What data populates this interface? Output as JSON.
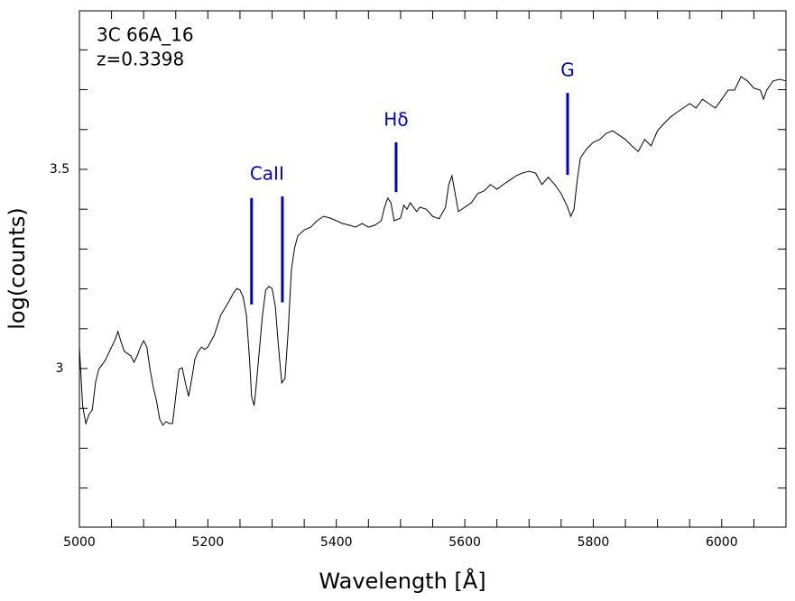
{
  "chart_data": {
    "type": "line",
    "annotations": [
      "3C 66A_16",
      "z=0.3398"
    ],
    "xlabel": "Wavelength [Å]",
    "ylabel": "log(counts)",
    "xlim": [
      5000,
      6100
    ],
    "ylim": [
      2.602,
      3.898
    ],
    "xticks": [
      5000,
      5200,
      5400,
      5600,
      5800,
      6000
    ],
    "xticks_minor": [
      5050,
      5100,
      5150,
      5250,
      5300,
      5350,
      5450,
      5500,
      5550,
      5650,
      5700,
      5750,
      5850,
      5900,
      5950,
      6050
    ],
    "yticks": [
      3,
      3.5
    ],
    "yticks_minor": [
      2.7,
      2.8,
      2.9,
      3.1,
      3.2,
      3.3,
      3.4,
      3.6,
      3.7,
      3.8
    ],
    "color": "#000000",
    "x": [
      5000,
      5005,
      5010,
      5015,
      5020,
      5025,
      5030,
      5040,
      5050,
      5055,
      5060,
      5065,
      5070,
      5080,
      5085,
      5090,
      5095,
      5100,
      5105,
      5110,
      5115,
      5120,
      5125,
      5130,
      5135,
      5140,
      5145,
      5150,
      5155,
      5160,
      5165,
      5170,
      5175,
      5180,
      5185,
      5190,
      5195,
      5200,
      5210,
      5220,
      5230,
      5240,
      5245,
      5250,
      5255,
      5260,
      5265,
      5268,
      5272,
      5275,
      5280,
      5285,
      5290,
      5295,
      5300,
      5305,
      5310,
      5315,
      5320,
      5325,
      5330,
      5335,
      5340,
      5350,
      5360,
      5370,
      5380,
      5390,
      5400,
      5410,
      5420,
      5430,
      5440,
      5450,
      5460,
      5470,
      5475,
      5480,
      5485,
      5490,
      5500,
      5505,
      5510,
      5515,
      5520,
      5525,
      5530,
      5540,
      5550,
      5560,
      5570,
      5575,
      5580,
      5585,
      5590,
      5600,
      5610,
      5620,
      5630,
      5640,
      5650,
      5660,
      5670,
      5680,
      5690,
      5700,
      5710,
      5720,
      5730,
      5740,
      5750,
      5760,
      5765,
      5770,
      5775,
      5780,
      5790,
      5800,
      5810,
      5820,
      5830,
      5840,
      5850,
      5860,
      5870,
      5880,
      5890,
      5900,
      5910,
      5920,
      5930,
      5940,
      5950,
      5960,
      5970,
      5980,
      5990,
      6000,
      6010,
      6020,
      6030,
      6040,
      6050,
      6060,
      6065,
      6070,
      6080,
      6090,
      6100
    ],
    "values": [
      3.054,
      2.907,
      2.862,
      2.885,
      2.896,
      2.964,
      2.998,
      3.02,
      3.054,
      3.07,
      3.093,
      3.066,
      3.043,
      3.032,
      3.016,
      3.032,
      3.054,
      3.07,
      3.054,
      2.998,
      2.953,
      2.919,
      2.873,
      2.858,
      2.867,
      2.862,
      2.862,
      2.93,
      2.998,
      3.002,
      2.964,
      2.93,
      2.975,
      3.025,
      3.043,
      3.054,
      3.048,
      3.054,
      3.084,
      3.134,
      3.161,
      3.19,
      3.201,
      3.197,
      3.179,
      3.134,
      3.02,
      2.93,
      2.907,
      2.953,
      3.043,
      3.134,
      3.197,
      3.206,
      3.201,
      3.156,
      3.054,
      2.964,
      2.975,
      3.093,
      3.247,
      3.303,
      3.333,
      3.348,
      3.355,
      3.371,
      3.382,
      3.378,
      3.371,
      3.364,
      3.36,
      3.355,
      3.364,
      3.355,
      3.36,
      3.371,
      3.405,
      3.428,
      3.416,
      3.371,
      3.378,
      3.41,
      3.4,
      3.416,
      3.405,
      3.394,
      3.405,
      3.4,
      3.382,
      3.376,
      3.405,
      3.462,
      3.484,
      3.439,
      3.394,
      3.405,
      3.416,
      3.439,
      3.446,
      3.462,
      3.45,
      3.462,
      3.473,
      3.484,
      3.491,
      3.495,
      3.491,
      3.462,
      3.48,
      3.462,
      3.439,
      3.405,
      3.382,
      3.4,
      3.473,
      3.529,
      3.552,
      3.568,
      3.575,
      3.59,
      3.597,
      3.586,
      3.575,
      3.559,
      3.545,
      3.575,
      3.559,
      3.597,
      3.615,
      3.631,
      3.643,
      3.654,
      3.665,
      3.654,
      3.676,
      3.665,
      3.654,
      3.676,
      3.699,
      3.699,
      3.733,
      3.722,
      3.704,
      3.699,
      3.676,
      3.699,
      3.722,
      3.726,
      3.722
    ],
    "line_markers": [
      {
        "label": "CaII",
        "lines": [
          {
            "x": 5268,
            "y": [
              3.161,
              3.428
            ]
          },
          {
            "x": 5316,
            "y": [
              3.166,
              3.432
            ]
          }
        ]
      },
      {
        "label": "Hδ",
        "lines": [
          {
            "x": 5493,
            "y": [
              3.443,
              3.568
            ]
          }
        ]
      },
      {
        "label": "G",
        "lines": [
          {
            "x": 5760,
            "y": [
              3.486,
              3.692
            ]
          }
        ]
      }
    ],
    "marker_color": "#0000cc"
  }
}
